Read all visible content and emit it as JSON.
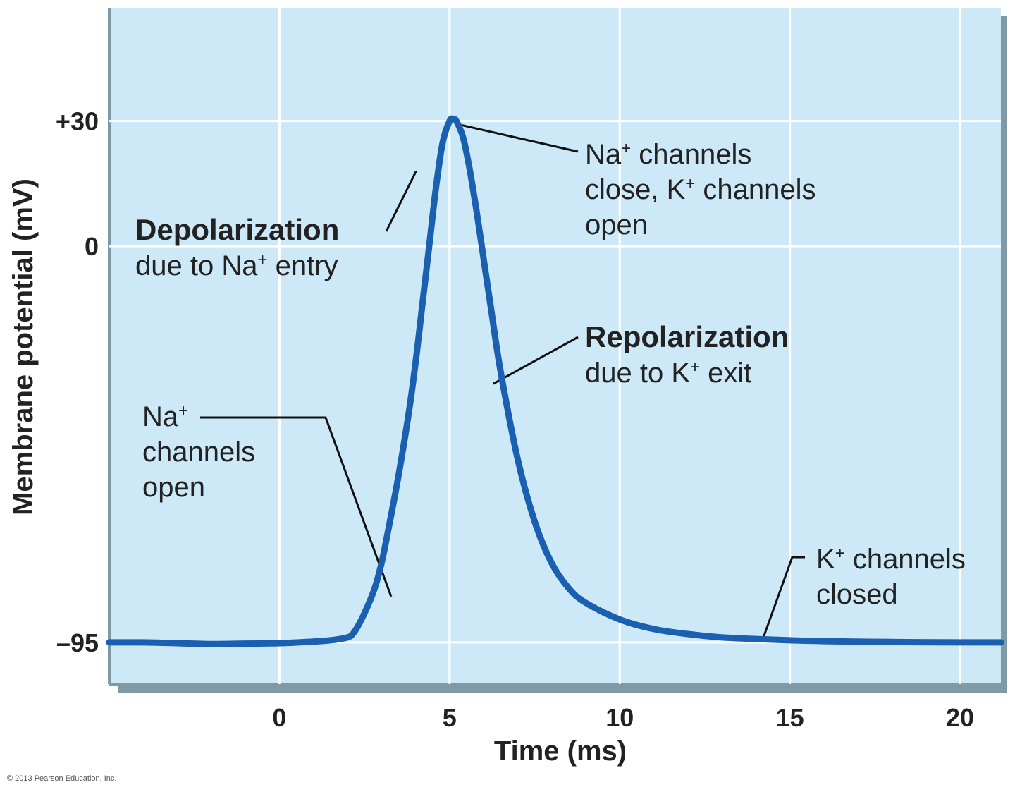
{
  "chart_data": {
    "type": "line",
    "xlabel": "Time (ms)",
    "ylabel": "Membrane potential (mV)",
    "x_ticks": [
      0,
      5,
      10,
      15,
      20
    ],
    "y_ticks": [
      {
        "value": 30,
        "label": "+30"
      },
      {
        "value": 0,
        "label": "0"
      },
      {
        "value": -95,
        "label": "–95"
      }
    ],
    "xlim": [
      -5,
      21.2
    ],
    "ylim": [
      -105,
      57
    ],
    "grid": true,
    "series": [
      {
        "x": [
          -5,
          -4,
          -3,
          -2,
          -1,
          0,
          1,
          1.5,
          2,
          2.2,
          2.5,
          2.8,
          3.0,
          3.2,
          3.5,
          3.8,
          4.0,
          4.2,
          4.4,
          4.6,
          4.8,
          5.0,
          5.1,
          5.2,
          5.4,
          5.6,
          5.8,
          6.0,
          6.2,
          6.5,
          7.0,
          7.5,
          8.0,
          8.5,
          9.0,
          10,
          11,
          12,
          13,
          14,
          15,
          16,
          18,
          20,
          21.2
        ],
        "y": [
          -95,
          -95,
          -95.2,
          -95.4,
          -95.3,
          -95.2,
          -94.8,
          -94.5,
          -93.8,
          -92.5,
          -88,
          -82,
          -76,
          -68,
          -55,
          -40,
          -28,
          -14,
          0,
          14,
          25,
          30,
          30.5,
          30,
          26,
          18,
          8,
          -3,
          -14,
          -30,
          -51,
          -66,
          -76,
          -82,
          -85.5,
          -89.5,
          -91.8,
          -93,
          -93.8,
          -94.2,
          -94.5,
          -94.7,
          -94.9,
          -95,
          -95
        ]
      }
    ],
    "annotations": {
      "na_close": {
        "line1": "Na",
        "sup1": "+",
        "rest1": " channels",
        "line2a": "close, K",
        "sup2": "+",
        "rest2": " channels",
        "line3": "open",
        "x": 5.2,
        "y": 29
      },
      "depolarization": {
        "title": "Depolarization",
        "line2a": "due to Na",
        "sup": "+",
        "rest": " entry",
        "x": 4.1,
        "y": 18
      },
      "repolarization": {
        "title": "Repolarization",
        "line2a": "due to K",
        "sup": "+",
        "rest": " exit",
        "x": 6.2,
        "y": -33
      },
      "na_open": {
        "line1": "Na",
        "sup1": "+",
        "line2": "channels",
        "line3": "open",
        "x": 3.2,
        "y": -84
      },
      "k_closed": {
        "line1a": "K",
        "sup1": "+",
        "rest1": " channels",
        "line2": "closed",
        "x": 14.2,
        "y": -94.3
      }
    }
  },
  "copyright": "© 2013 Pearson Education, Inc."
}
